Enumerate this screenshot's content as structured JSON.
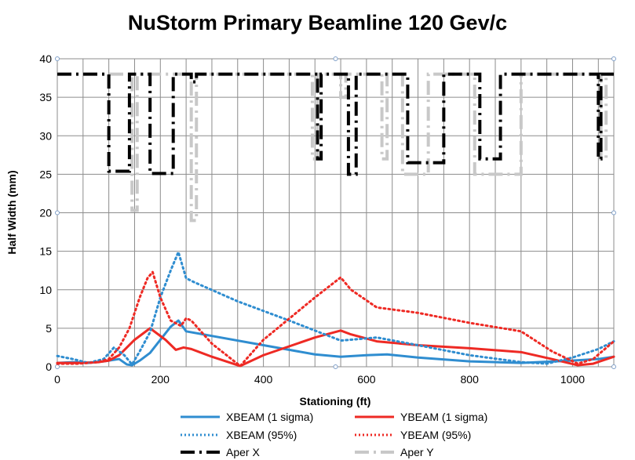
{
  "chart_data": {
    "type": "line",
    "title": "NuStorm Primary Beamline 120 Gev/c",
    "xlabel": "Stationing (ft)",
    "ylabel": "Half Width (mm)",
    "xlim": [
      0,
      1080
    ],
    "ylim": [
      0,
      40
    ],
    "x_ticks": [
      "0",
      "200",
      "400",
      "600",
      "800",
      "1000"
    ],
    "y_ticks": [
      "0",
      "5",
      "10",
      "15",
      "20",
      "25",
      "30",
      "35",
      "40"
    ],
    "grid": true,
    "legend_position": "bottom",
    "series": [
      {
        "name": "XBEAM (1 sigma)",
        "color": "#2f8dd0",
        "style": "solid",
        "x": [
          0,
          30,
          60,
          90,
          120,
          135,
          145,
          160,
          180,
          200,
          220,
          235,
          250,
          300,
          400,
          500,
          550,
          600,
          640,
          700,
          800,
          900,
          1000,
          1050,
          1080
        ],
        "y": [
          0.5,
          0.6,
          0.5,
          0.7,
          1.0,
          0.3,
          0.2,
          0.8,
          1.8,
          3.5,
          5.2,
          6.0,
          4.6,
          4.0,
          2.8,
          1.6,
          1.3,
          1.5,
          1.6,
          1.2,
          0.7,
          0.5,
          0.8,
          1.0,
          1.3
        ]
      },
      {
        "name": "YBEAM (1 sigma)",
        "color": "#ee2a24",
        "style": "solid",
        "x": [
          0,
          40,
          80,
          100,
          120,
          150,
          180,
          210,
          230,
          245,
          260,
          300,
          355,
          400,
          500,
          550,
          570,
          620,
          700,
          800,
          900,
          960,
          1010,
          1040,
          1080
        ],
        "y": [
          0.5,
          0.5,
          0.6,
          0.8,
          1.5,
          3.5,
          5.0,
          3.5,
          2.2,
          2.5,
          2.3,
          1.3,
          0.1,
          1.5,
          3.8,
          4.7,
          4.2,
          3.3,
          2.8,
          2.4,
          1.9,
          1.0,
          0.2,
          0.4,
          1.3
        ]
      },
      {
        "name": "XBEAM (95%)",
        "color": "#2f8dd0",
        "style": "dotted",
        "x": [
          0,
          30,
          60,
          90,
          110,
          130,
          145,
          160,
          180,
          200,
          220,
          235,
          250,
          265,
          350,
          450,
          550,
          620,
          700,
          800,
          900,
          950,
          1000,
          1050,
          1080
        ],
        "y": [
          1.4,
          1.0,
          0.5,
          1.0,
          2.5,
          1.5,
          0.3,
          2.0,
          4.5,
          9.0,
          12.5,
          14.9,
          11.5,
          11.0,
          8.5,
          6.0,
          3.4,
          3.8,
          2.8,
          1.5,
          0.6,
          0.4,
          1.2,
          2.3,
          3.3
        ]
      },
      {
        "name": "YBEAM (95%)",
        "color": "#ee2a24",
        "style": "dotted",
        "x": [
          0,
          40,
          80,
          100,
          120,
          140,
          160,
          175,
          185,
          200,
          220,
          240,
          250,
          260,
          300,
          355,
          400,
          500,
          550,
          570,
          620,
          700,
          800,
          900,
          960,
          1010,
          1040,
          1080
        ],
        "y": [
          0.4,
          0.4,
          0.6,
          1.0,
          2.5,
          5.0,
          9.0,
          11.5,
          12.3,
          9.0,
          6.0,
          5.3,
          6.3,
          6.0,
          3.0,
          0.1,
          3.5,
          9.0,
          11.6,
          10.0,
          7.7,
          7.0,
          5.7,
          4.6,
          2.0,
          0.4,
          1.0,
          3.3
        ]
      },
      {
        "name": "Aper X",
        "color": "#000000",
        "style": "dash",
        "baseline": 38,
        "apertures": [
          {
            "x1": 100,
            "x2": 140,
            "depth": 25.4
          },
          {
            "x1": 180,
            "x2": 225,
            "depth": 25.1
          },
          {
            "x1": 260,
            "x2": 270,
            "depth": 37.0
          },
          {
            "x1": 505,
            "x2": 512,
            "depth": 27.0
          },
          {
            "x1": 565,
            "x2": 580,
            "depth": 25.0
          },
          {
            "x1": 680,
            "x2": 750,
            "depth": 26.5
          },
          {
            "x1": 820,
            "x2": 860,
            "depth": 27.0
          },
          {
            "x1": 1050,
            "x2": 1055,
            "depth": 27.0
          }
        ]
      },
      {
        "name": "Aper Y",
        "color": "#c8c8c8",
        "style": "dash",
        "baseline": 38,
        "apertures": [
          {
            "x1": 145,
            "x2": 155,
            "depth": 20.3
          },
          {
            "x1": 260,
            "x2": 270,
            "depth": 19.0
          },
          {
            "x1": 495,
            "x2": 505,
            "depth": 27.0
          },
          {
            "x1": 550,
            "x2": 560,
            "depth": 35.0
          },
          {
            "x1": 630,
            "x2": 640,
            "depth": 27.0
          },
          {
            "x1": 670,
            "x2": 720,
            "depth": 25.0
          },
          {
            "x1": 810,
            "x2": 900,
            "depth": 25.0
          },
          {
            "x1": 1055,
            "x2": 1065,
            "depth": 27.0
          }
        ]
      }
    ]
  }
}
